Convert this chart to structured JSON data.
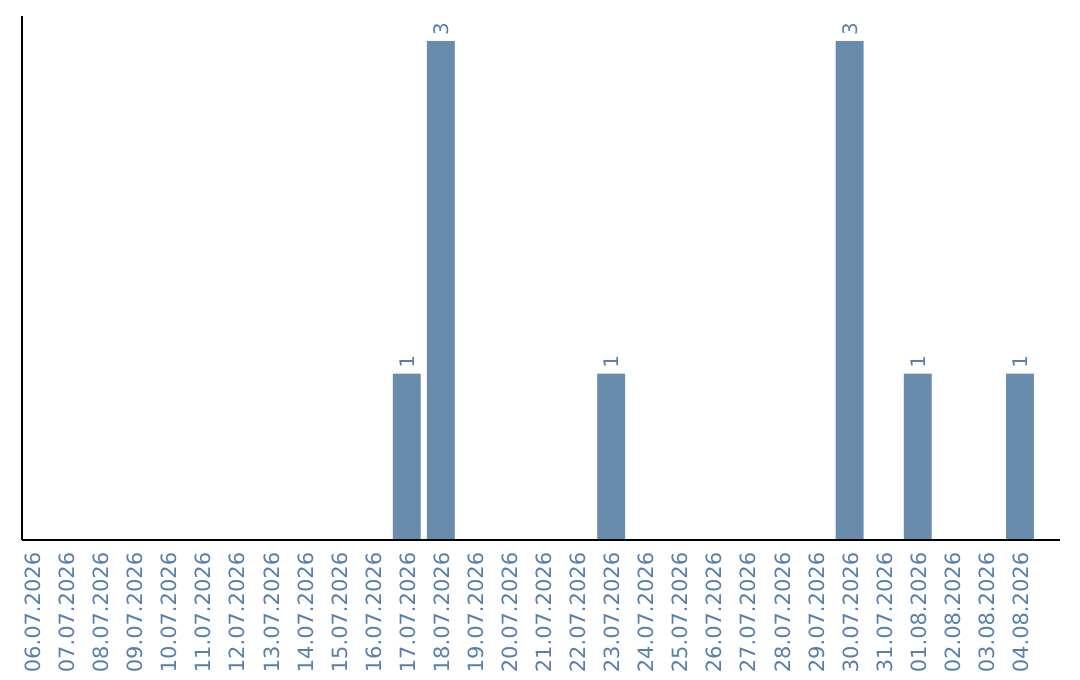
{
  "chart_data": {
    "type": "bar",
    "categories": [
      "06.07.2026",
      "07.07.2026",
      "08.07.2026",
      "09.07.2026",
      "10.07.2026",
      "11.07.2026",
      "12.07.2026",
      "13.07.2026",
      "14.07.2026",
      "15.07.2026",
      "16.07.2026",
      "17.07.2026",
      "18.07.2026",
      "19.07.2026",
      "20.07.2026",
      "21.07.2026",
      "22.07.2026",
      "23.07.2026",
      "24.07.2026",
      "25.07.2026",
      "26.07.2026",
      "27.07.2026",
      "28.07.2026",
      "29.07.2026",
      "30.07.2026",
      "31.07.2026",
      "01.08.2026",
      "02.08.2026",
      "03.08.2026",
      "04.08.2026"
    ],
    "values": [
      0,
      0,
      0,
      0,
      0,
      0,
      0,
      0,
      0,
      0,
      0,
      1,
      3,
      0,
      0,
      0,
      0,
      1,
      0,
      0,
      0,
      0,
      0,
      0,
      3,
      0,
      1,
      0,
      0,
      1
    ],
    "value_labels": [
      null,
      null,
      null,
      null,
      null,
      null,
      null,
      null,
      null,
      null,
      null,
      "1",
      "3",
      null,
      null,
      null,
      null,
      "1",
      null,
      null,
      null,
      null,
      null,
      null,
      "3",
      null,
      "1",
      null,
      null,
      "1"
    ],
    "color": "#6a8cac"
  }
}
